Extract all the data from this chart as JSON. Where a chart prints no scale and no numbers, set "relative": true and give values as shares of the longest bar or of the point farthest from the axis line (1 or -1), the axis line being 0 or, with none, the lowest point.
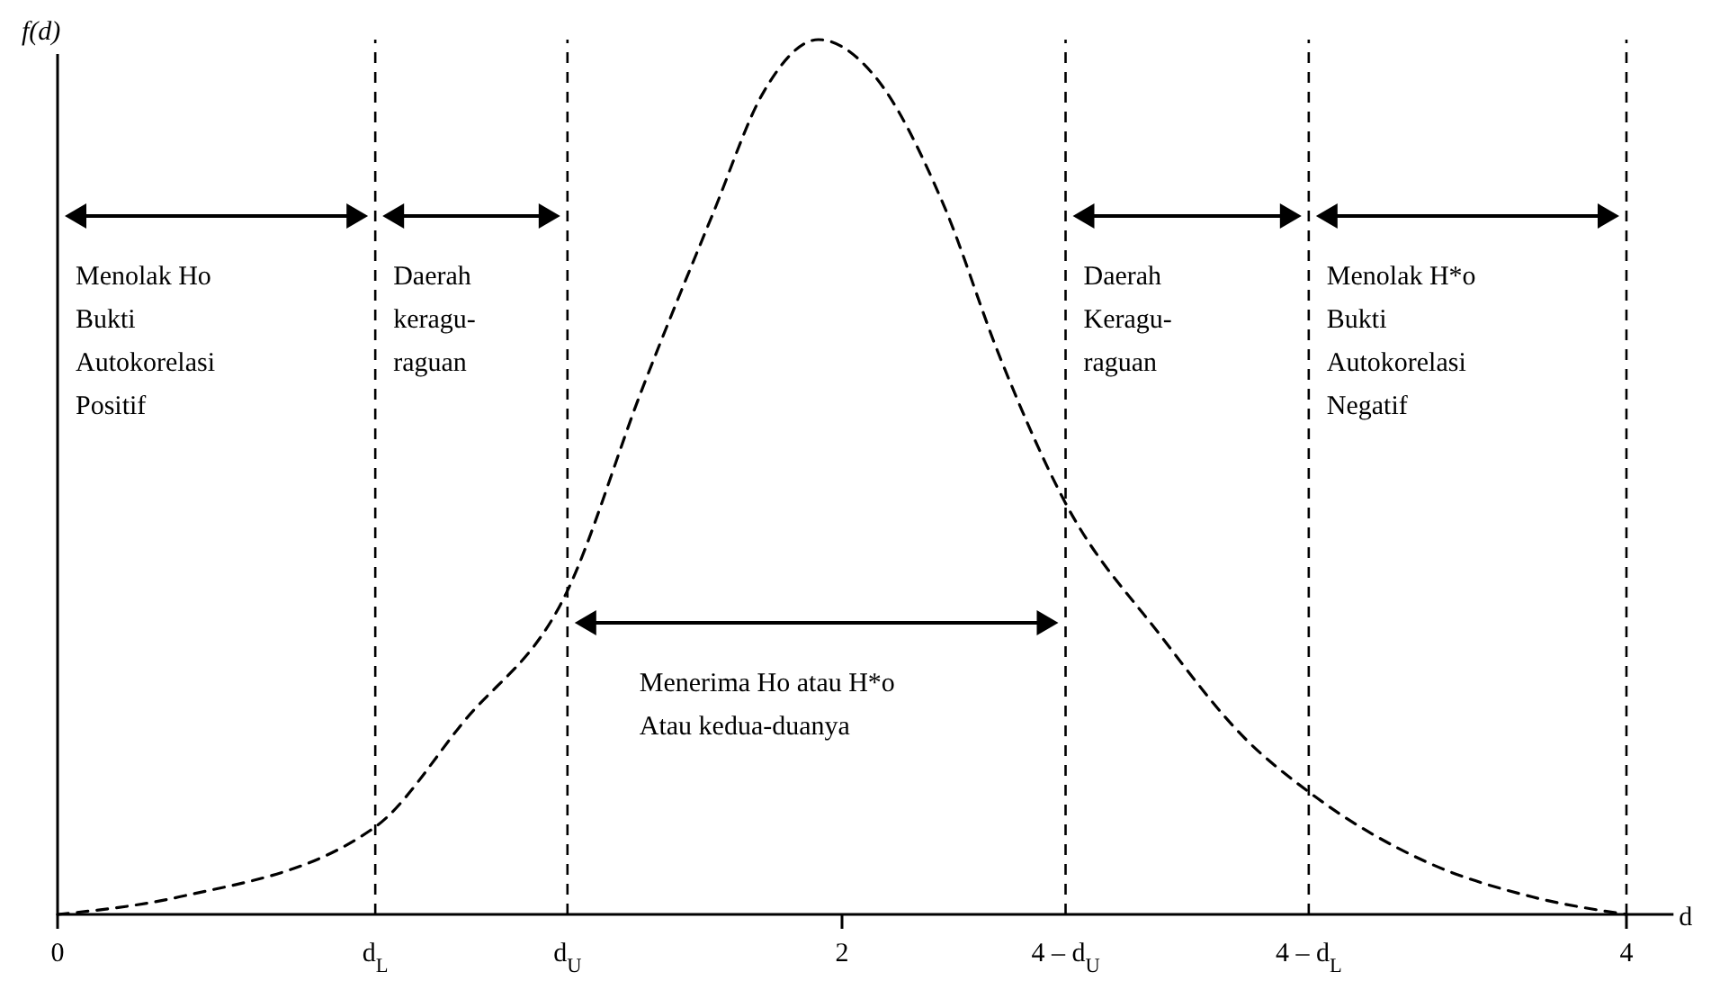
{
  "chart_data": {
    "type": "line",
    "relative": true,
    "ylabel": "f(d)",
    "xlabel": "d",
    "x": [
      0,
      0.31,
      0.81,
      1.035,
      1.3,
      1.49,
      1.67,
      1.8,
      1.94,
      2.08,
      2.26,
      2.4,
      2.57,
      2.81,
      3.03,
      3.19,
      3.49,
      3.76,
      4.0
    ],
    "series": [
      {
        "color": "#000000",
        "values": [
          0,
          0.02,
          0.1,
          0.22,
          0.37,
          0.6,
          0.8,
          0.94,
          1.0,
          0.96,
          0.81,
          0.64,
          0.47,
          0.32,
          0.2,
          0.14,
          0.06,
          0.02,
          0
        ]
      }
    ],
    "line_style": "dashed",
    "marker": "none",
    "xlim": [
      0,
      4.12
    ],
    "xticks": [
      0,
      2,
      4
    ],
    "ref_lines": [
      {
        "axis": "x",
        "value": 0.81,
        "label": "d$_{L}$",
        "line_style": "dashed",
        "color": "#000000"
      },
      {
        "axis": "x",
        "value": 1.3,
        "label": "d$_{U}$",
        "line_style": "dashed",
        "color": "#000000"
      },
      {
        "axis": "x",
        "value": 2.57,
        "label": "4 – d$_{U}$",
        "line_style": "dashed",
        "color": "#000000"
      },
      {
        "axis": "x",
        "value": 3.19,
        "label": "4 – d$_{L}$",
        "line_style": "dashed",
        "color": "#000000"
      },
      {
        "axis": "x",
        "value": 4,
        "line_style": "dashed",
        "color": "#000000"
      }
    ],
    "annotations": [
      "Menolak Ho\nBukti\nAutokorelasi\nPositif",
      "Daerah\nkeragu-\nraguan",
      "Menerima Ho atau H*o\nAtau kedua-duanya",
      "Daerah\nKeragu-\nraguan",
      "Menolak H*o\nBukti\nAutokorelasi\nNegatif"
    ],
    "grid": false,
    "legend": false
  }
}
